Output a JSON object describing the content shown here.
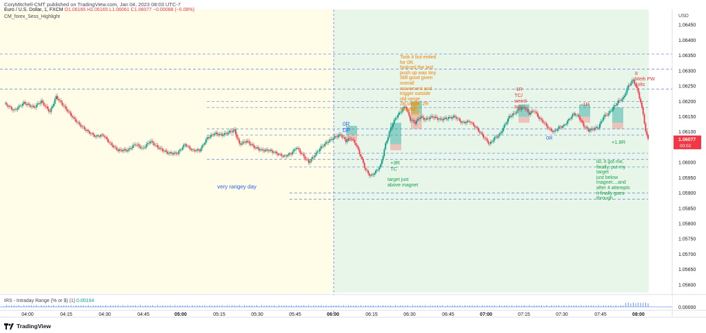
{
  "header": {
    "publisher": "CoryMitchell-CMT published on TradingView.com, Jan 04, 2023 08:03 UTC-7",
    "symbol_line": "Euro / U.S. Dollar, 1, FXCM",
    "ohlc": "O1.06165 H1.06165 L1.06061 C1.06077 −0.00088 (−0.08%)",
    "indicator": "CM_forex_Sess_Highlight"
  },
  "footer": {
    "brand": "TradingView"
  },
  "colors": {
    "up": "#089981",
    "down": "#f23645",
    "session_pre": "#fffde7",
    "session_ny": "#e8f5e9",
    "level": "#5b7ed6"
  },
  "chart_data": {
    "type": "candlestick",
    "title": "",
    "x_ticks": [
      "04:00",
      "04:15",
      "04:30",
      "04:45",
      "05:00",
      "05:15",
      "05:30",
      "05:45",
      "06:00",
      "06:15",
      "06:30",
      "06:45",
      "07:00",
      "07:15",
      "07:30",
      "07:45",
      "08:00"
    ],
    "y_axis_unit": "USD",
    "y_ticks": [
      "1.06450",
      "1.06400",
      "1.06350",
      "1.06300",
      "1.06250",
      "1.06200",
      "1.06150",
      "1.06100",
      "1.06050",
      "1.06000",
      "1.05950",
      "1.05900",
      "1.05850",
      "1.05800",
      "1.05750",
      "1.05700",
      "1.05650",
      "1.05600"
    ],
    "ylim": [
      1.05575,
      1.065
    ],
    "last_price": "1.06077",
    "last_price_timer": "00:02",
    "levels": [
      1.06355,
      1.06305,
      1.0624,
      1.062,
      1.0618,
      1.0611,
      1.0609,
      1.0601,
      1.0603,
      1.05985,
      1.059,
      1.0588
    ],
    "path": [
      [
        0,
        1.06195
      ],
      [
        8,
        1.0617
      ],
      [
        16,
        1.06195
      ],
      [
        24,
        1.0618
      ],
      [
        30,
        1.062
      ],
      [
        37,
        1.06165
      ],
      [
        42,
        1.06215
      ],
      [
        50,
        1.06175
      ],
      [
        57,
        1.0614
      ],
      [
        62,
        1.0612
      ],
      [
        68,
        1.061
      ],
      [
        74,
        1.06085
      ],
      [
        80,
        1.0609
      ],
      [
        86,
        1.0606
      ],
      [
        92,
        1.0604
      ],
      [
        100,
        1.0604
      ],
      [
        106,
        1.0606
      ],
      [
        112,
        1.06045
      ],
      [
        118,
        1.0607
      ],
      [
        124,
        1.0605
      ],
      [
        128,
        1.0604
      ],
      [
        133,
        1.0603
      ],
      [
        140,
        1.0603
      ],
      [
        146,
        1.0606
      ],
      [
        152,
        1.0604
      ],
      [
        158,
        1.0604
      ],
      [
        164,
        1.0608
      ],
      [
        170,
        1.06095
      ],
      [
        176,
        1.0609
      ],
      [
        182,
        1.061
      ],
      [
        186,
        1.06105
      ],
      [
        190,
        1.0606
      ],
      [
        196,
        1.0607
      ],
      [
        202,
        1.0605
      ],
      [
        208,
        1.0604
      ],
      [
        214,
        1.0604
      ],
      [
        220,
        1.0603
      ],
      [
        226,
        1.0602
      ],
      [
        232,
        1.0603
      ],
      [
        236,
        1.0605
      ],
      [
        240,
        1.0603
      ],
      [
        246,
        1.06
      ],
      [
        250,
        1.0602
      ],
      [
        256,
        1.0605
      ],
      [
        262,
        1.0607
      ],
      [
        268,
        1.06085
      ],
      [
        272,
        1.0609
      ],
      [
        276,
        1.0607
      ],
      [
        280,
        1.0608
      ],
      [
        284,
        1.0606
      ],
      [
        288,
        1.0602
      ],
      [
        292,
        1.05975
      ],
      [
        296,
        1.05955
      ],
      [
        300,
        1.0597
      ],
      [
        304,
        1.0599
      ],
      [
        308,
        1.0606
      ],
      [
        312,
        1.0611
      ],
      [
        316,
        1.06145
      ],
      [
        320,
        1.06165
      ],
      [
        324,
        1.06185
      ],
      [
        328,
        1.0614
      ],
      [
        332,
        1.0613
      ],
      [
        336,
        1.0615
      ],
      [
        340,
        1.0614
      ],
      [
        346,
        1.0615
      ],
      [
        352,
        1.0614
      ],
      [
        358,
        1.06145
      ],
      [
        364,
        1.0615
      ],
      [
        370,
        1.0613
      ],
      [
        376,
        1.06135
      ],
      [
        382,
        1.0611
      ],
      [
        388,
        1.0608
      ],
      [
        392,
        1.0606
      ],
      [
        396,
        1.0608
      ],
      [
        400,
        1.0609
      ],
      [
        404,
        1.0612
      ],
      [
        408,
        1.0615
      ],
      [
        412,
        1.0616
      ],
      [
        416,
        1.06175
      ],
      [
        420,
        1.0618
      ],
      [
        424,
        1.0616
      ],
      [
        428,
        1.0617
      ],
      [
        432,
        1.06145
      ],
      [
        436,
        1.0613
      ],
      [
        440,
        1.0611
      ],
      [
        444,
        1.061
      ],
      [
        448,
        1.06115
      ],
      [
        452,
        1.0612
      ],
      [
        456,
        1.0614
      ],
      [
        460,
        1.0616
      ],
      [
        464,
        1.0615
      ],
      [
        468,
        1.0612
      ],
      [
        472,
        1.06105
      ],
      [
        476,
        1.0611
      ],
      [
        480,
        1.06115
      ],
      [
        484,
        1.0615
      ],
      [
        488,
        1.0616
      ],
      [
        492,
        1.0618
      ],
      [
        496,
        1.062
      ],
      [
        500,
        1.0621
      ],
      [
        504,
        1.0625
      ],
      [
        508,
        1.0627
      ],
      [
        512,
        1.0623
      ],
      [
        516,
        1.0616
      ],
      [
        518,
        1.061
      ],
      [
        520,
        1.06077
      ]
    ],
    "annotations": [
      {
        "id": "very-rangey-day",
        "text": "very rangey day",
        "color": "blue"
      },
      {
        "id": "0r-dp",
        "text": "0R\nDP",
        "color": "blue"
      },
      {
        "id": "took-it",
        "text": "Took it but exited\nfor 0R.\nNoticed the last\npush up was tiny.\nStill good given\noverall\nmovement and\ntrigger outside\nold range.\n2R target. 2R\nmissed",
        "color": "orange"
      },
      {
        "id": "plus-3r-tc",
        "text": "+3R\nTC",
        "color": "green"
      },
      {
        "id": "target-just",
        "text": "target just\nabove magnet",
        "color": "green"
      },
      {
        "id": "minus-1r-tc",
        "text": "-1R\nTC/\nweird\nRB",
        "color": "red"
      },
      {
        "id": "0r-second",
        "text": "0R",
        "color": "blue"
      },
      {
        "id": "minus-1r",
        "text": "-1R",
        "color": "red"
      },
      {
        "id": "plus-1-8r",
        "text": "+1.8R",
        "color": "green"
      },
      {
        "id": "lol",
        "text": "lol, it got me,\nfinally, put my\ntarget\njust below\nmagnet....and\nafter 4 attempts\nit finally goes\nthrough.",
        "color": "green"
      },
      {
        "id": "jolts",
        "text": "8\nMeth PW\nJolts",
        "color": "red"
      }
    ]
  },
  "irs": {
    "label": "IRS - Intraday Range (% or $) (1)",
    "value": "0.00104",
    "tick": "0.00000"
  }
}
